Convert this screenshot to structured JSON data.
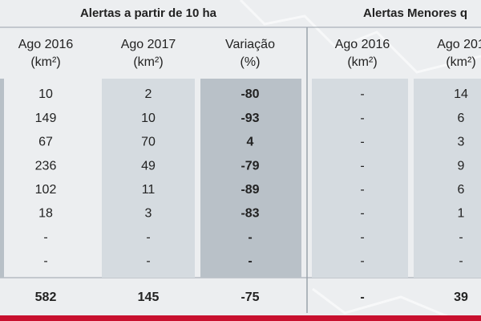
{
  "groups": [
    {
      "title": "Alertas a partir de 10 ha"
    },
    {
      "title": "Alertas Menores q"
    }
  ],
  "columns": [
    {
      "label": "Ago 2016",
      "unit": "(km²)"
    },
    {
      "label": "Ago 2017",
      "unit": "(km²)"
    },
    {
      "label": "Variação",
      "unit": "(%)"
    },
    {
      "label": "Ago 2016",
      "unit": "(km²)"
    },
    {
      "label": "Ago 201",
      "unit": "(km²)"
    }
  ],
  "rows": [
    [
      "10",
      "2",
      "-80",
      "-",
      "14"
    ],
    [
      "149",
      "10",
      "-93",
      "-",
      "6"
    ],
    [
      "67",
      "70",
      "4",
      "-",
      "3"
    ],
    [
      "236",
      "49",
      "-79",
      "-",
      "9"
    ],
    [
      "102",
      "11",
      "-89",
      "-",
      "6"
    ],
    [
      "18",
      "3",
      "-83",
      "-",
      "1"
    ],
    [
      "-",
      "-",
      "-",
      "-",
      "-"
    ],
    [
      "-",
      "-",
      "-",
      "-",
      "-"
    ]
  ],
  "total": [
    "582",
    "145",
    "-75",
    "-",
    "39"
  ]
}
